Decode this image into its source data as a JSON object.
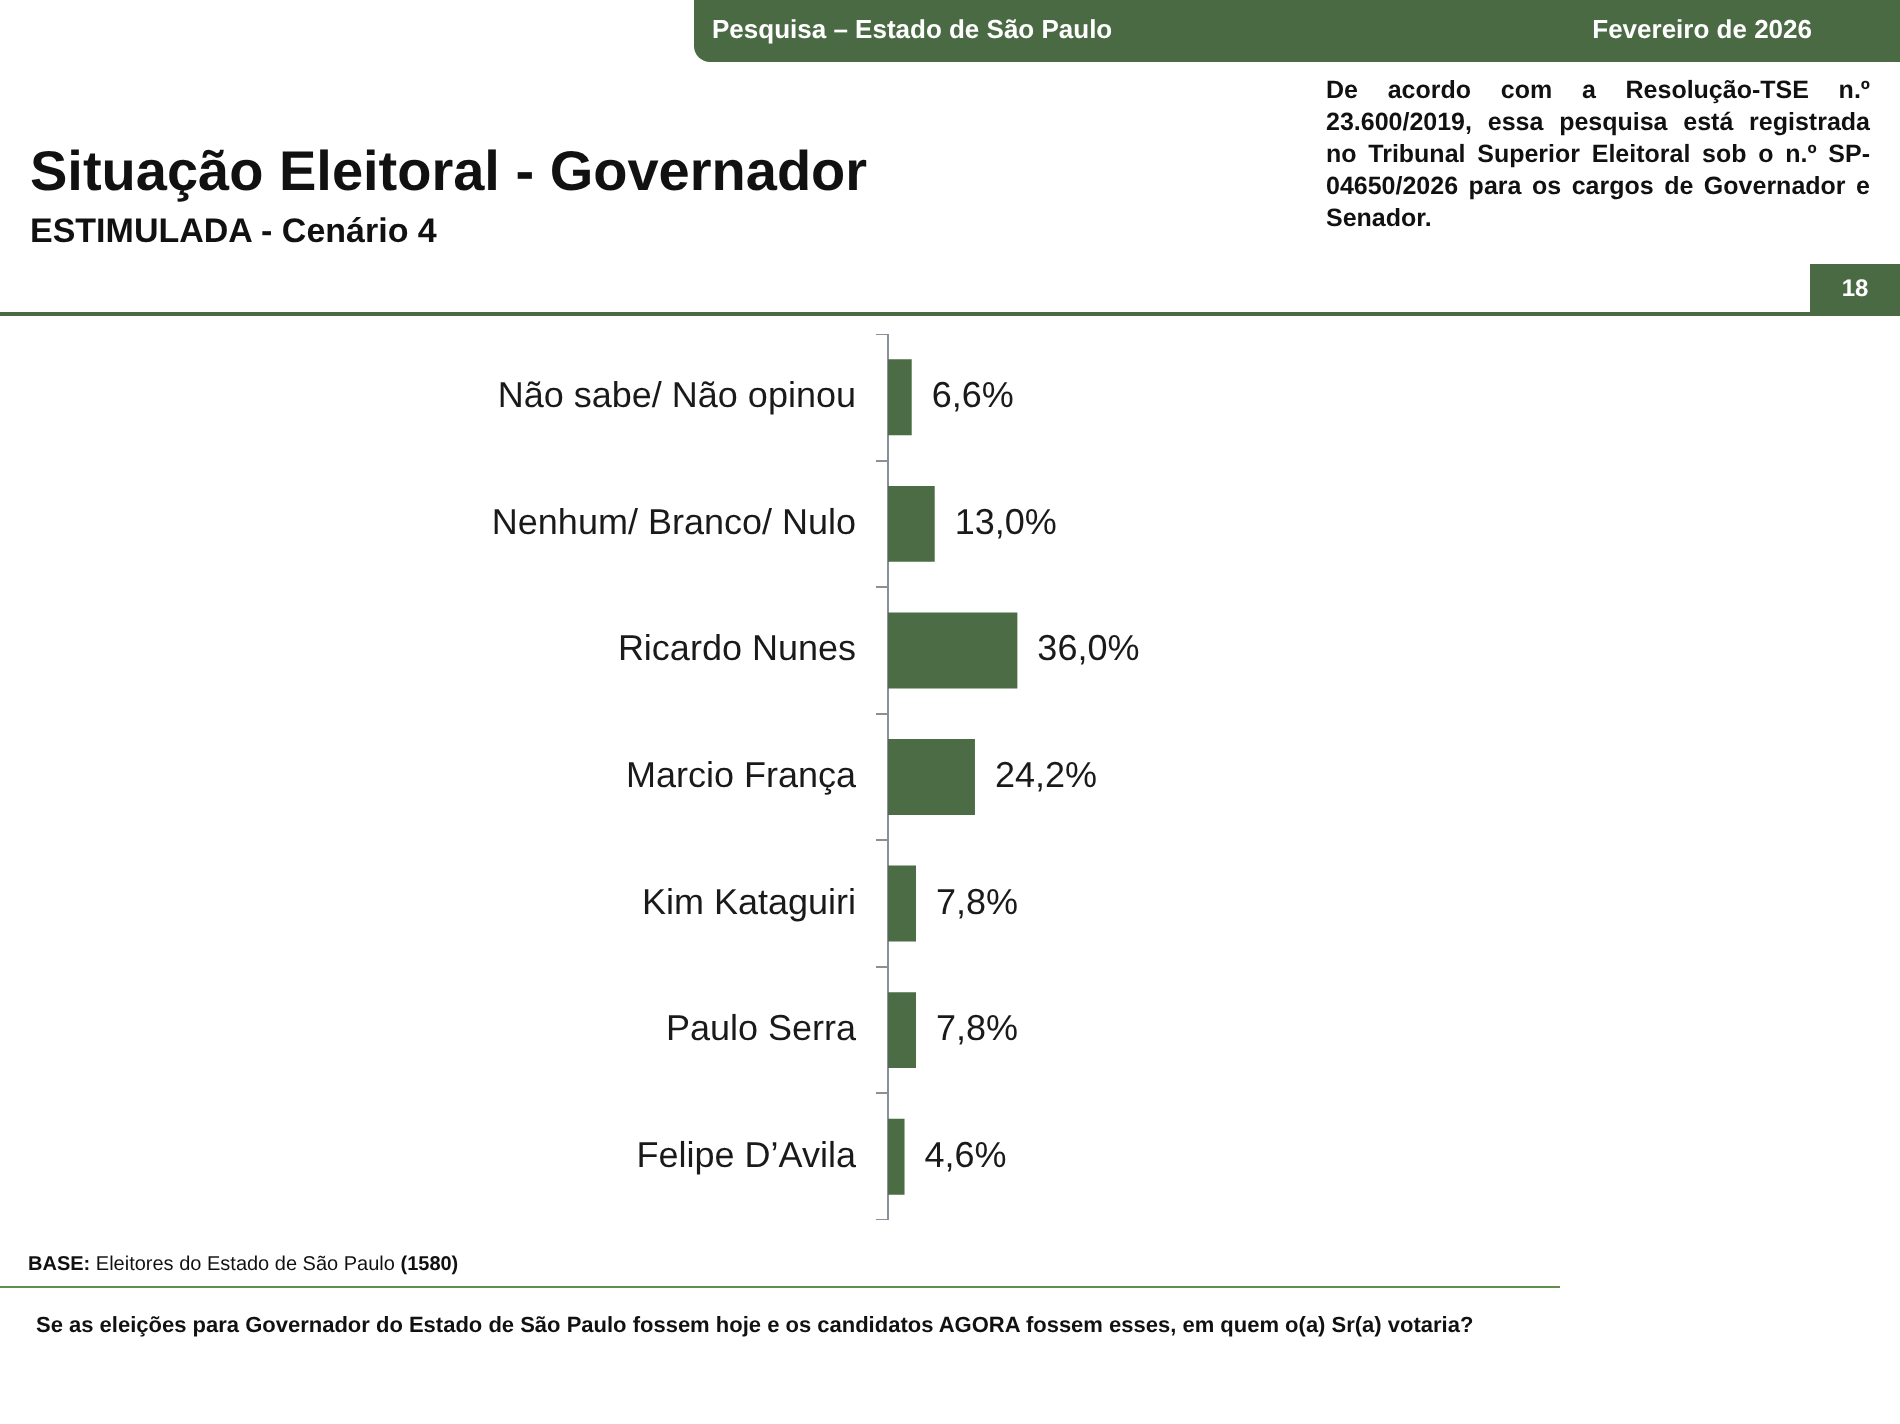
{
  "chart_data": {
    "type": "bar",
    "orientation": "horizontal",
    "title": "Situação Eleitoral - Governador",
    "subtitle": "ESTIMULADA - Cenário 4",
    "categories": [
      "Não sabe/ Não opinou",
      "Nenhum/ Branco/ Nulo",
      "Ricardo Nunes",
      "Marcio França",
      "Kim Kataguiri",
      "Paulo Serra",
      "Felipe D’Avila"
    ],
    "values": [
      6.6,
      13.0,
      36.0,
      24.2,
      7.8,
      7.8,
      4.6
    ],
    "value_labels": [
      "6,6%",
      "13,0%",
      "36,0%",
      "24,2%",
      "7,8%",
      "7,8%",
      "4,6%"
    ],
    "color": "#4b6c45",
    "annotations": [
      "Pesquisa – Estado de São Paulo",
      "Fevereiro de 2026",
      "De acordo com a Resolução-TSE n.º 23.600/2019, essa pesquisa está registrada no Tribunal Superior Eleitoral sob o n.º SP-04650/2026 para os cargos de Governador e Senador.",
      "18",
      "BASE: Eleitores do Estado de São Paulo (1580)",
      "Se as eleições para Governador do Estado de São Paulo fossem hoje e os candidatos AGORA fossem esses, em quem o(a) Sr(a) votaria?"
    ]
  }
}
